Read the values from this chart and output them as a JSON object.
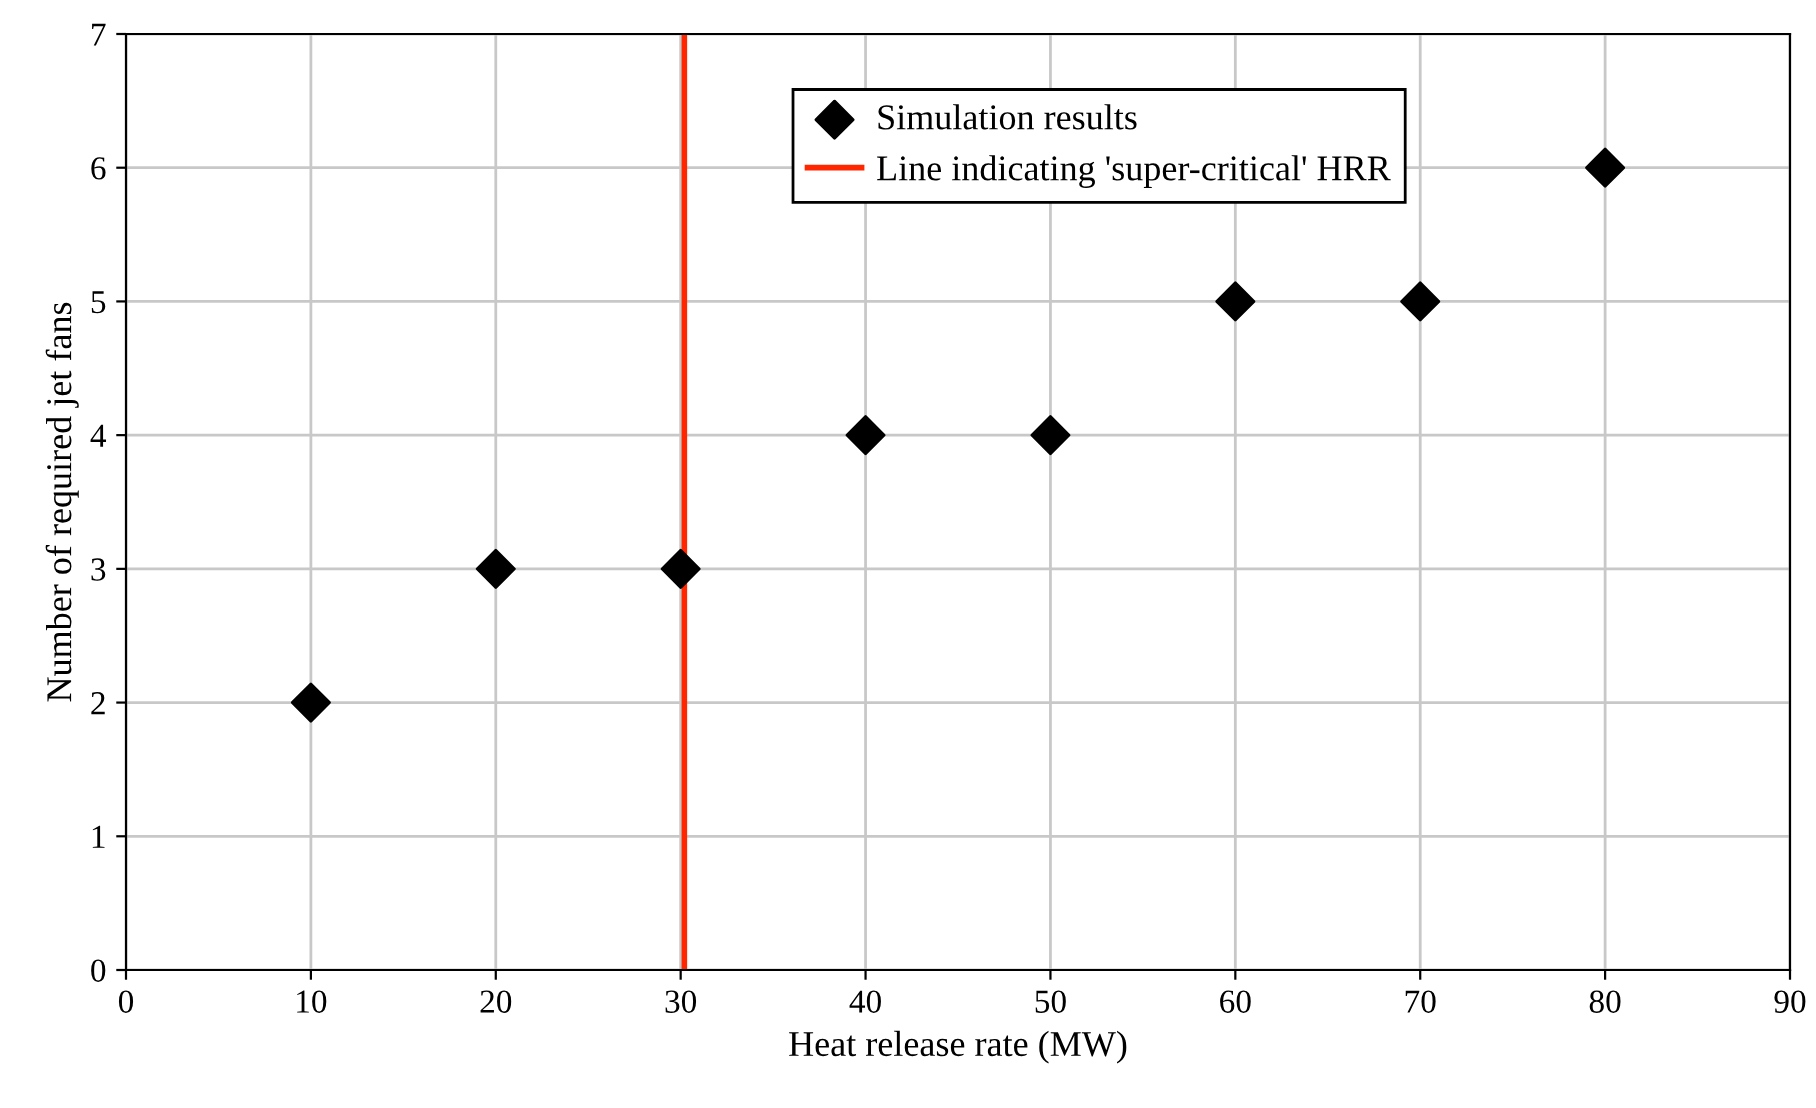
{
  "chart_data": {
    "type": "scatter",
    "xlabel": "Heat release rate (MW)",
    "ylabel": "Number of required jet fans",
    "x": [
      10,
      20,
      30,
      40,
      50,
      60,
      70,
      80
    ],
    "series": [
      {
        "name": "Simulation results",
        "color": "#000000",
        "values": [
          2,
          3,
          3,
          4,
          4,
          5,
          5,
          6
        ]
      },
      {
        "name": "Line indicating 'super-critical' HRR",
        "type": "line",
        "marker": "none",
        "line_style": "solid",
        "color": "#ff2600",
        "x": [
          30.2,
          30.2
        ],
        "values": [
          0,
          7
        ]
      }
    ],
    "marker": "diamond",
    "xlim": [
      0,
      90
    ],
    "xticks": [
      0,
      10,
      20,
      30,
      40,
      50,
      60,
      70,
      80,
      90
    ],
    "ylim": [
      0,
      7
    ],
    "yticks": [
      0,
      1,
      2,
      3,
      4,
      5,
      6,
      7
    ],
    "grid": true,
    "legend": "top"
  }
}
